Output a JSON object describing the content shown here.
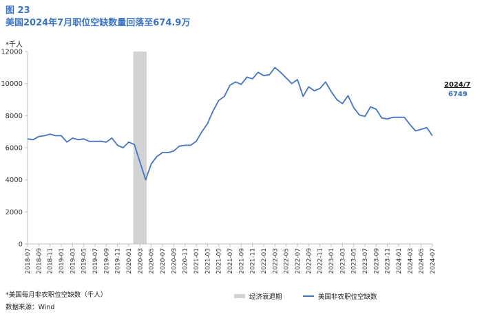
{
  "header": {
    "figure_number": "图 23",
    "title": "美国2024年7月职位空缺数量回落至674.9万"
  },
  "unit_label": "*千人",
  "callout": {
    "date": "2024/7",
    "value": "6749"
  },
  "footer": {
    "note": "*美国每月非农职位空缺数（千人）",
    "source": "数据来源：Wind"
  },
  "legend": {
    "recession": "经济衰退期",
    "series": "美国非农职位空缺数"
  },
  "colors": {
    "line": "#4472c4",
    "recession": "#d3d3d3",
    "title": "#3a73c4",
    "axis": "#bfbfbf"
  },
  "chart_data": {
    "type": "line",
    "xlabel": "",
    "ylabel": "千人",
    "ylim": [
      0,
      12000
    ],
    "yticks": [
      0,
      2000,
      4000,
      6000,
      8000,
      10000,
      12000
    ],
    "xtick_labels": [
      "2018-07",
      "2018-09",
      "2018-11",
      "2019-01",
      "2019-03",
      "2019-05",
      "2019-07",
      "2019-09",
      "2019-11",
      "2020-01",
      "2020-03",
      "2020-05",
      "2020-07",
      "2020-09",
      "2020-11",
      "2021-01",
      "2021-03",
      "2021-05",
      "2021-07",
      "2021-09",
      "2021-11",
      "2022-01",
      "2022-03",
      "2022-05",
      "2022-07",
      "2022-09",
      "2022-11",
      "2023-01",
      "2023-03",
      "2023-05",
      "2023-07",
      "2023-09",
      "2023-11",
      "2024-01",
      "2024-03",
      "2024-05",
      "2024-07"
    ],
    "grid": false,
    "recession": {
      "start": "2020-02",
      "end": "2020-04"
    },
    "series": [
      {
        "name": "美国非农职位空缺数",
        "x": [
          "2018-07",
          "2018-08",
          "2018-09",
          "2018-10",
          "2018-11",
          "2018-12",
          "2019-01",
          "2019-02",
          "2019-03",
          "2019-04",
          "2019-05",
          "2019-06",
          "2019-07",
          "2019-08",
          "2019-09",
          "2019-10",
          "2019-11",
          "2019-12",
          "2020-01",
          "2020-02",
          "2020-03",
          "2020-04",
          "2020-05",
          "2020-06",
          "2020-07",
          "2020-08",
          "2020-09",
          "2020-10",
          "2020-11",
          "2020-12",
          "2021-01",
          "2021-02",
          "2021-03",
          "2021-04",
          "2021-05",
          "2021-06",
          "2021-07",
          "2021-08",
          "2021-09",
          "2021-10",
          "2021-11",
          "2021-12",
          "2022-01",
          "2022-02",
          "2022-03",
          "2022-04",
          "2022-05",
          "2022-06",
          "2022-07",
          "2022-08",
          "2022-09",
          "2022-10",
          "2022-11",
          "2022-12",
          "2023-01",
          "2023-02",
          "2023-03",
          "2023-04",
          "2023-05",
          "2023-06",
          "2023-07",
          "2023-08",
          "2023-09",
          "2023-10",
          "2023-11",
          "2023-12",
          "2024-01",
          "2024-02",
          "2024-03",
          "2024-04",
          "2024-05",
          "2024-06",
          "2024-07"
        ],
        "values": [
          6550,
          6500,
          6700,
          6750,
          6850,
          6750,
          6750,
          6350,
          6600,
          6500,
          6550,
          6400,
          6400,
          6400,
          6350,
          6600,
          6150,
          6000,
          6350,
          6200,
          5100,
          4000,
          5000,
          5450,
          5700,
          5700,
          5800,
          6100,
          6150,
          6150,
          6400,
          7000,
          7500,
          8300,
          8950,
          9200,
          9900,
          10100,
          9950,
          10400,
          10300,
          10700,
          10500,
          10550,
          11000,
          10700,
          10350,
          10000,
          10250,
          9200,
          9800,
          9550,
          9700,
          10100,
          9500,
          9000,
          8750,
          9250,
          8500,
          8050,
          7950,
          8550,
          8400,
          7850,
          7800,
          7900,
          7900,
          7900,
          7450,
          7050,
          7150,
          7250,
          6749
        ]
      }
    ]
  }
}
